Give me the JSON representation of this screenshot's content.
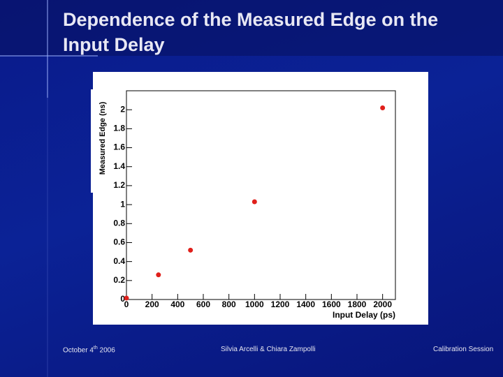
{
  "slide": {
    "title": "Dependence of the Measured Edge on the Input Delay",
    "footer_date": [
      "October 4",
      "th",
      " 2006"
    ],
    "footer_authors": "Silvia Arcelli & Chiara Zampolli",
    "footer_session": "Calibration Session"
  },
  "chart_data": {
    "type": "scatter",
    "x_label": "Input Delay (ps)",
    "y_label": "Measured Edge (ns)",
    "x": [
      0,
      250,
      500,
      1000,
      2000
    ],
    "series": [
      {
        "color": "#e0201b",
        "values": [
          0.015,
          0.26,
          0.52,
          1.03,
          2.02
        ]
      }
    ],
    "xlim": [
      0,
      2100
    ],
    "ylim": [
      0,
      2.2
    ],
    "xticks": [
      0,
      200,
      400,
      600,
      800,
      1000,
      1200,
      1400,
      1600,
      1800,
      2000
    ],
    "yticks": [
      0,
      0.2,
      0.4,
      0.6,
      0.8,
      1,
      1.2,
      1.4,
      1.6,
      1.8,
      2
    ]
  }
}
